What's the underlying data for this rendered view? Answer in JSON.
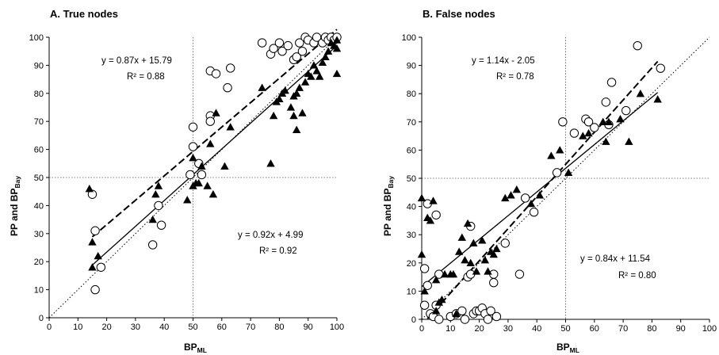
{
  "chart_data": [
    {
      "type": "scatter",
      "title": "A. True nodes",
      "xlabel": "BP",
      "xlabel_sub": "ML",
      "ylabel": "PP and BP",
      "ylabel_sub": "Bay",
      "xlim": [
        0,
        100
      ],
      "ylim": [
        0,
        100
      ],
      "xticks": [
        "0",
        "10",
        "20",
        "30",
        "40",
        "50",
        "60",
        "70",
        "80",
        "90",
        "100"
      ],
      "yticks": [
        "0",
        "10",
        "20",
        "30",
        "40",
        "50",
        "60",
        "70",
        "80",
        "90",
        "100"
      ],
      "reference_lines": {
        "x": 50,
        "y": 50
      },
      "series": [
        {
          "marker": "open-circle",
          "points": [
            [
              15,
              44
            ],
            [
              16,
              10
            ],
            [
              16,
              31
            ],
            [
              18,
              18
            ],
            [
              36,
              26
            ],
            [
              38,
              40
            ],
            [
              39,
              33
            ],
            [
              49,
              51
            ],
            [
              50,
              68
            ],
            [
              50,
              61
            ],
            [
              52,
              55
            ],
            [
              53,
              51
            ],
            [
              56,
              88
            ],
            [
              56,
              72
            ],
            [
              56,
              70
            ],
            [
              58,
              87
            ],
            [
              62,
              82
            ],
            [
              63,
              89
            ],
            [
              74,
              98
            ],
            [
              77,
              94
            ],
            [
              78,
              96
            ],
            [
              80,
              98
            ],
            [
              81,
              95
            ],
            [
              83,
              97
            ],
            [
              85,
              92
            ],
            [
              86,
              93
            ],
            [
              87,
              98
            ],
            [
              88,
              95
            ],
            [
              89,
              100
            ],
            [
              90,
              99
            ],
            [
              92,
              98
            ],
            [
              93,
              100
            ],
            [
              95,
              98
            ],
            [
              96,
              100
            ],
            [
              97,
              99
            ],
            [
              98,
              100
            ],
            [
              99,
              99
            ],
            [
              100,
              100
            ]
          ]
        },
        {
          "marker": "filled-triangle",
          "points": [
            [
              14,
              46
            ],
            [
              15,
              18
            ],
            [
              15,
              27
            ],
            [
              17,
              22
            ],
            [
              36,
              35
            ],
            [
              37,
              44
            ],
            [
              38,
              47
            ],
            [
              48,
              42
            ],
            [
              50,
              47
            ],
            [
              50,
              57
            ],
            [
              51,
              48
            ],
            [
              52,
              48
            ],
            [
              53,
              54
            ],
            [
              55,
              47
            ],
            [
              56,
              62
            ],
            [
              57,
              44
            ],
            [
              58,
              73
            ],
            [
              61,
              54
            ],
            [
              63,
              68
            ],
            [
              74,
              82
            ],
            [
              77,
              55
            ],
            [
              78,
              72
            ],
            [
              79,
              77
            ],
            [
              80,
              78
            ],
            [
              81,
              80
            ],
            [
              82,
              81
            ],
            [
              84,
              75
            ],
            [
              85,
              72
            ],
            [
              85,
              79
            ],
            [
              86,
              67
            ],
            [
              86,
              80
            ],
            [
              87,
              82
            ],
            [
              88,
              73
            ],
            [
              89,
              84
            ],
            [
              90,
              87
            ],
            [
              91,
              86
            ],
            [
              92,
              90
            ],
            [
              93,
              88
            ],
            [
              94,
              86
            ],
            [
              95,
              91
            ],
            [
              96,
              93
            ],
            [
              97,
              95
            ],
            [
              98,
              98
            ],
            [
              99,
              97
            ],
            [
              100,
              87
            ],
            [
              100,
              96
            ],
            [
              100,
              99
            ]
          ]
        }
      ],
      "fits": [
        {
          "style": "dashed",
          "equation": "y = 0.87x + 15.79",
          "r2": "R² = 0.88",
          "slope": 0.87,
          "intercept": 15.79,
          "x_range": [
            15,
            100
          ]
        },
        {
          "style": "solid",
          "equation": "y = 0.92x + 4.99",
          "r2": "R² = 0.92",
          "slope": 0.92,
          "intercept": 4.99,
          "x_range": [
            15,
            100
          ]
        },
        {
          "style": "dotted",
          "slope": 1,
          "intercept": 0,
          "x_range": [
            0,
            100
          ]
        }
      ]
    },
    {
      "type": "scatter",
      "title": "B. False nodes",
      "xlabel": "BP",
      "xlabel_sub": "ML",
      "ylabel": "PP and BP",
      "ylabel_sub": "Bay",
      "xlim": [
        0,
        100
      ],
      "ylim": [
        0,
        100
      ],
      "xticks": [
        "0",
        "10",
        "20",
        "30",
        "40",
        "50",
        "60",
        "70",
        "80",
        "90",
        "100"
      ],
      "yticks": [
        "0",
        "10",
        "20",
        "30",
        "40",
        "50",
        "60",
        "70",
        "80",
        "90",
        "100"
      ],
      "reference_lines": {
        "x": 50,
        "y": 50
      },
      "series": [
        {
          "marker": "open-circle",
          "points": [
            [
              1,
              5
            ],
            [
              1,
              18
            ],
            [
              2,
              41
            ],
            [
              2,
              12
            ],
            [
              3,
              2
            ],
            [
              4,
              1
            ],
            [
              5,
              37
            ],
            [
              5,
              5
            ],
            [
              6,
              0
            ],
            [
              6,
              16
            ],
            [
              10,
              1
            ],
            [
              12,
              2
            ],
            [
              14,
              3
            ],
            [
              15,
              0
            ],
            [
              16,
              15
            ],
            [
              17,
              33
            ],
            [
              17,
              16
            ],
            [
              18,
              2
            ],
            [
              19,
              3
            ],
            [
              20,
              3
            ],
            [
              21,
              4
            ],
            [
              22,
              2
            ],
            [
              23,
              0
            ],
            [
              24,
              3
            ],
            [
              25,
              13
            ],
            [
              25,
              16
            ],
            [
              26,
              1
            ],
            [
              29,
              27
            ],
            [
              34,
              16
            ],
            [
              36,
              43
            ],
            [
              39,
              38
            ],
            [
              47,
              52
            ],
            [
              49,
              70
            ],
            [
              53,
              66
            ],
            [
              57,
              71
            ],
            [
              58,
              70
            ],
            [
              60,
              68
            ],
            [
              64,
              77
            ],
            [
              65,
              69
            ],
            [
              66,
              84
            ],
            [
              71,
              74
            ],
            [
              75,
              97
            ],
            [
              83,
              89
            ]
          ]
        },
        {
          "marker": "filled-triangle",
          "points": [
            [
              0,
              43
            ],
            [
              0,
              23
            ],
            [
              1,
              10
            ],
            [
              2,
              36
            ],
            [
              3,
              35
            ],
            [
              4,
              42
            ],
            [
              5,
              14
            ],
            [
              5,
              3
            ],
            [
              6,
              6
            ],
            [
              7,
              7
            ],
            [
              8,
              16
            ],
            [
              10,
              16
            ],
            [
              11,
              16
            ],
            [
              12,
              2
            ],
            [
              13,
              24
            ],
            [
              14,
              29
            ],
            [
              15,
              21
            ],
            [
              16,
              34
            ],
            [
              17,
              20
            ],
            [
              18,
              27
            ],
            [
              19,
              17
            ],
            [
              21,
              28
            ],
            [
              22,
              21
            ],
            [
              23,
              17
            ],
            [
              24,
              24
            ],
            [
              25,
              23
            ],
            [
              26,
              25
            ],
            [
              29,
              43
            ],
            [
              31,
              44
            ],
            [
              33,
              46
            ],
            [
              38,
              41
            ],
            [
              41,
              44
            ],
            [
              45,
              58
            ],
            [
              48,
              60
            ],
            [
              51,
              52
            ],
            [
              56,
              65
            ],
            [
              58,
              66
            ],
            [
              63,
              70
            ],
            [
              64,
              63
            ],
            [
              65,
              70
            ],
            [
              69,
              71
            ],
            [
              72,
              63
            ],
            [
              76,
              80
            ],
            [
              82,
              78
            ]
          ]
        }
      ],
      "fits": [
        {
          "style": "dashed",
          "equation": "y = 1.14x - 2.05",
          "r2": "R² = 0.78",
          "slope": 1.14,
          "intercept": -2.05,
          "x_range": [
            2,
            82
          ]
        },
        {
          "style": "solid",
          "equation": "y = 0.84x + 11.54",
          "r2": "R² = 0.80",
          "slope": 0.84,
          "intercept": 11.54,
          "x_range": [
            0,
            82
          ]
        },
        {
          "style": "dotted",
          "slope": 1,
          "intercept": 0,
          "x_range": [
            0,
            100
          ]
        }
      ]
    }
  ]
}
